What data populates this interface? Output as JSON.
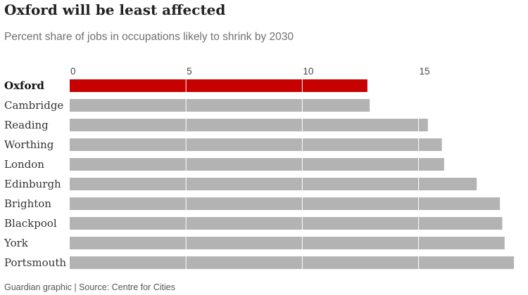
{
  "chart_data": {
    "type": "bar",
    "orientation": "horizontal",
    "title": "Oxford will be least affected",
    "subtitle": "Percent share of jobs in occupations likely to shrink by 2030",
    "categories": [
      "Oxford",
      "Cambridge",
      "Reading",
      "Worthing",
      "London",
      "Edinburgh",
      "Brighton",
      "Blackpool",
      "York",
      "Portsmouth"
    ],
    "values": [
      12.8,
      12.9,
      15.4,
      16.0,
      16.1,
      17.5,
      18.5,
      18.6,
      18.7,
      19.1
    ],
    "highlight": "Oxford",
    "xlim": [
      0,
      19.1
    ],
    "xticks": [
      0,
      5,
      10,
      15
    ],
    "tick_labels": [
      "0",
      "5",
      "10",
      "15"
    ],
    "axis_position": "top",
    "grid": true,
    "xlabel": "",
    "ylabel": ""
  },
  "colors": {
    "highlight_bar": "#c70000",
    "default_bar": "#b3b3b3",
    "gridline": "#ffffff"
  },
  "footer": {
    "source": "Guardian graphic | Source: Centre for Cities"
  }
}
